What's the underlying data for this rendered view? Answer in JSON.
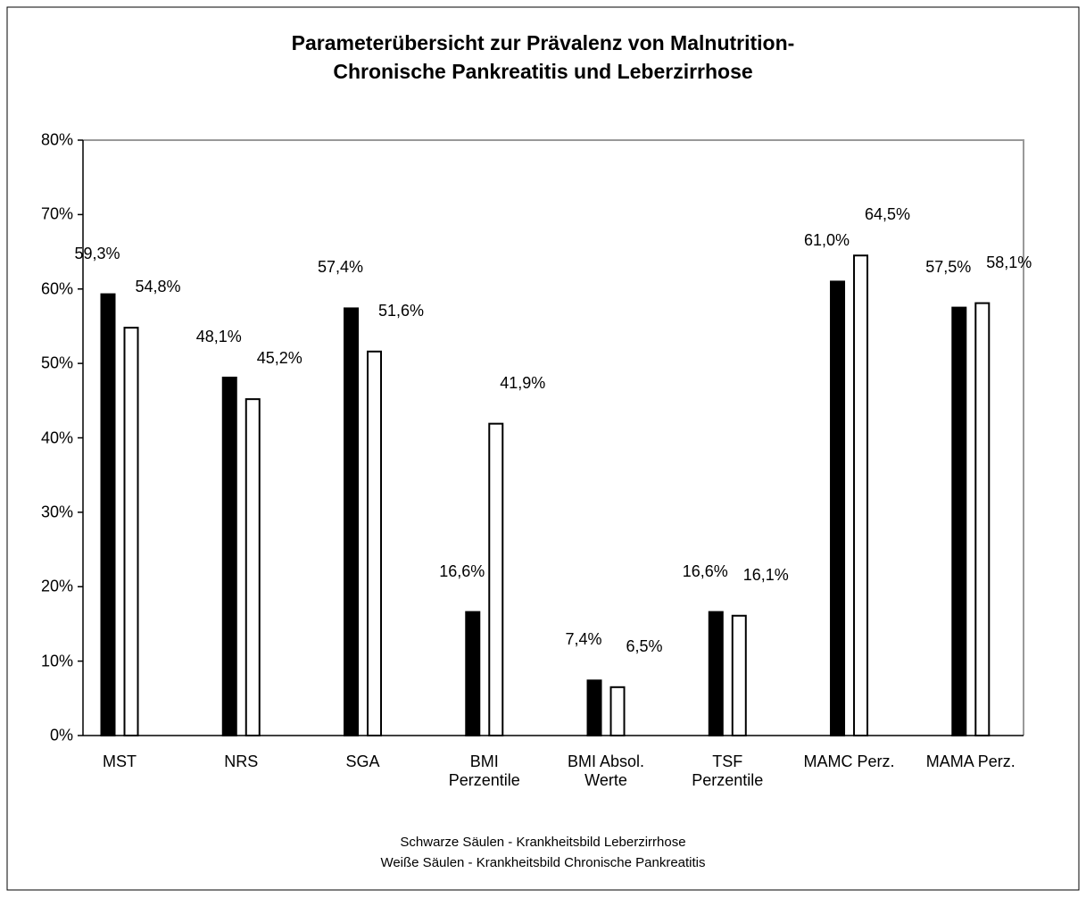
{
  "chart_data": {
    "type": "bar",
    "title": "Parameterübersicht zur Prävalenz von Malnutrition-\nChronische Pankreatitis und Leberzirrhose",
    "categories": [
      "MST",
      "NRS",
      "SGA",
      "BMI\nPerzentile",
      "BMI Absol.\nWerte",
      "TSF\nPerzentile",
      "MAMC Perz.",
      "MAMA Perz."
    ],
    "series": [
      {
        "color": "#000000",
        "values": [
          59.3,
          48.1,
          57.4,
          16.6,
          7.4,
          16.6,
          61.0,
          57.5
        ],
        "value_labels": [
          "59,3%",
          "48,1%",
          "57,4%",
          "16,6%",
          "7,4%",
          "16,6%",
          "61,0%",
          "57,5%"
        ]
      },
      {
        "color": "#ffffff",
        "values": [
          54.8,
          45.2,
          51.6,
          41.9,
          6.5,
          16.1,
          64.5,
          58.1
        ],
        "value_labels": [
          "54,8%",
          "45,2%",
          "51,6%",
          "41,9%",
          "6,5%",
          "16,1%",
          "64,5%",
          "58,1%"
        ]
      }
    ],
    "ylim": [
      0,
      80
    ],
    "yticks": [
      {
        "value": 0,
        "label": "0%"
      },
      {
        "value": 10,
        "label": "10%"
      },
      {
        "value": 20,
        "label": "20%"
      },
      {
        "value": 30,
        "label": "30%"
      },
      {
        "value": 40,
        "label": "40%"
      },
      {
        "value": 50,
        "label": "50%"
      },
      {
        "value": 60,
        "label": "60%"
      },
      {
        "value": 70,
        "label": "70%"
      },
      {
        "value": 80,
        "label": "80%"
      }
    ],
    "grid": false,
    "annotations": [
      "Schwarze Säulen - Krankheitsbild Leberzirrhose",
      "Weiße Säulen - Krankheitsbild Chronische Pankreatitis"
    ]
  }
}
